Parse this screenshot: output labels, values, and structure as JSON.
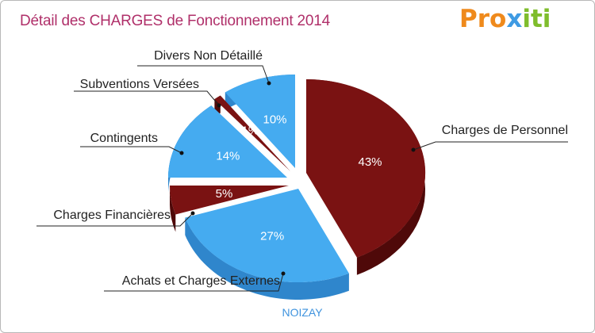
{
  "title": "Détail des CHARGES de Fonctionnement 2014",
  "logo": {
    "text": "Proxiti",
    "color_orange": "#ef8a1c",
    "color_blue": "#3f9be3",
    "color_green": "#7fbd2c"
  },
  "commune": "NOIZAY",
  "colors": {
    "red": "#7a1212",
    "red_side": "#4f0909",
    "blue": "#45abf0",
    "blue_side": "#2f86cc"
  },
  "chart_data": {
    "type": "pie",
    "title": "Détail des CHARGES de Fonctionnement 2014",
    "slices": [
      {
        "name": "Charges de Personnel",
        "percent_label": "43%",
        "value": 43,
        "color": "red"
      },
      {
        "name": "Achats et Charges Externes",
        "percent_label": "27%",
        "value": 27,
        "color": "blue"
      },
      {
        "name": "Charges Financières",
        "percent_label": "5%",
        "value": 5,
        "color": "red"
      },
      {
        "name": "Contingents",
        "percent_label": "14%",
        "value": 14,
        "color": "blue"
      },
      {
        "name": "Subventions Versées",
        "percent_label": "1%",
        "value": 1,
        "color": "red"
      },
      {
        "name": "Divers Non Détaillé",
        "percent_label": "10%",
        "value": 10,
        "color": "blue"
      }
    ]
  }
}
